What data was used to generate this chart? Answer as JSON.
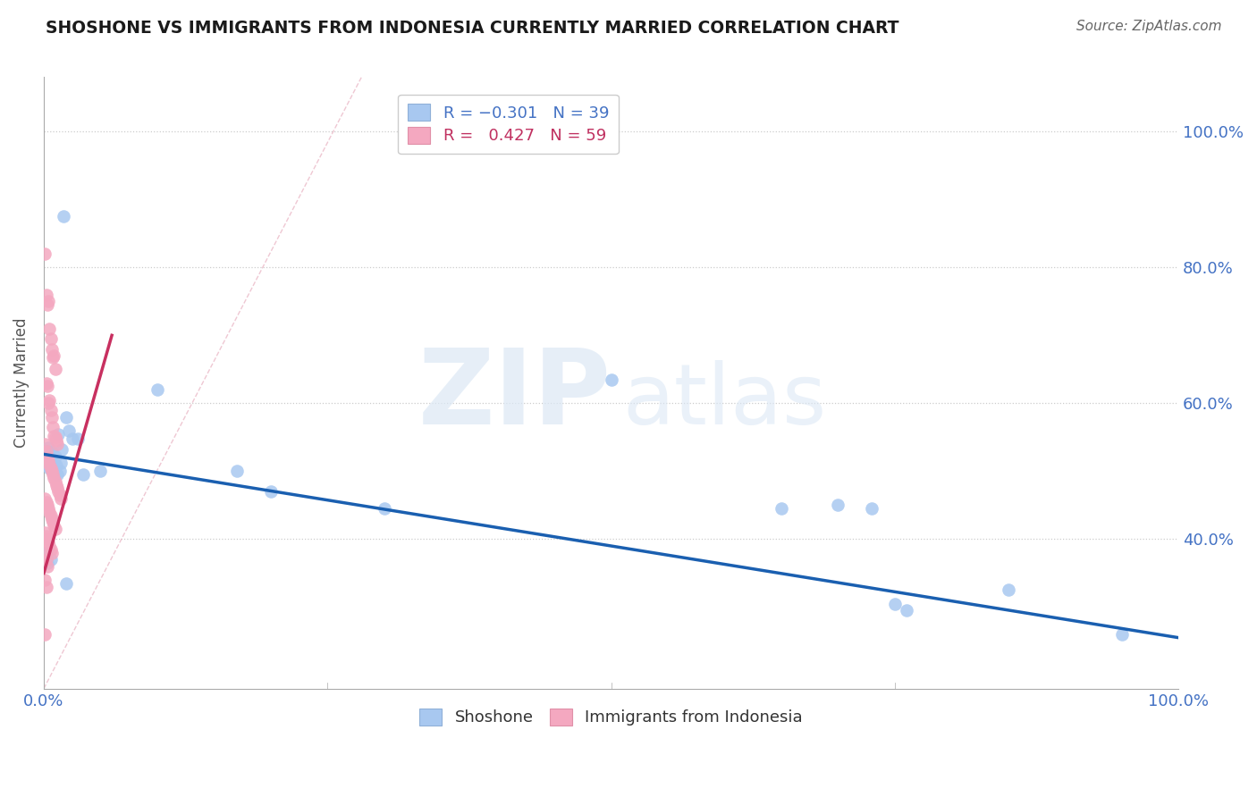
{
  "title": "SHOSHONE VS IMMIGRANTS FROM INDONESIA CURRENTLY MARRIED CORRELATION CHART",
  "source": "Source: ZipAtlas.com",
  "ylabel": "Currently Married",
  "R_blue": -0.301,
  "N_blue": 39,
  "R_pink": 0.427,
  "N_pink": 59,
  "blue_color": "#a8c8f0",
  "pink_color": "#f4a8c0",
  "trendline_blue_color": "#1a5fb0",
  "trendline_pink_color": "#c83060",
  "ref_line_color": "#e8b0c0",
  "legend_blue_label": "Shoshone",
  "legend_pink_label": "Immigrants from Indonesia",
  "blue_scatter": [
    [
      0.001,
      0.51
    ],
    [
      0.002,
      0.53
    ],
    [
      0.003,
      0.525
    ],
    [
      0.004,
      0.535
    ],
    [
      0.005,
      0.505
    ],
    [
      0.006,
      0.518
    ],
    [
      0.007,
      0.528
    ],
    [
      0.008,
      0.5
    ],
    [
      0.009,
      0.515
    ],
    [
      0.01,
      0.522
    ],
    [
      0.011,
      0.508
    ],
    [
      0.012,
      0.495
    ],
    [
      0.013,
      0.555
    ],
    [
      0.014,
      0.5
    ],
    [
      0.015,
      0.512
    ],
    [
      0.016,
      0.532
    ],
    [
      0.017,
      0.875
    ],
    [
      0.02,
      0.58
    ],
    [
      0.022,
      0.56
    ],
    [
      0.025,
      0.548
    ],
    [
      0.03,
      0.548
    ],
    [
      0.035,
      0.495
    ],
    [
      0.05,
      0.5
    ],
    [
      0.1,
      0.62
    ],
    [
      0.17,
      0.5
    ],
    [
      0.2,
      0.47
    ],
    [
      0.3,
      0.445
    ],
    [
      0.5,
      0.635
    ],
    [
      0.65,
      0.445
    ],
    [
      0.7,
      0.45
    ],
    [
      0.73,
      0.445
    ],
    [
      0.75,
      0.305
    ],
    [
      0.76,
      0.295
    ],
    [
      0.85,
      0.325
    ],
    [
      0.95,
      0.26
    ],
    [
      0.002,
      0.38
    ],
    [
      0.003,
      0.365
    ],
    [
      0.006,
      0.37
    ],
    [
      0.02,
      0.335
    ]
  ],
  "pink_scatter": [
    [
      0.001,
      0.82
    ],
    [
      0.002,
      0.76
    ],
    [
      0.003,
      0.745
    ],
    [
      0.004,
      0.75
    ],
    [
      0.005,
      0.71
    ],
    [
      0.006,
      0.695
    ],
    [
      0.007,
      0.68
    ],
    [
      0.008,
      0.668
    ],
    [
      0.009,
      0.67
    ],
    [
      0.01,
      0.65
    ],
    [
      0.002,
      0.63
    ],
    [
      0.003,
      0.625
    ],
    [
      0.004,
      0.6
    ],
    [
      0.005,
      0.605
    ],
    [
      0.006,
      0.59
    ],
    [
      0.007,
      0.58
    ],
    [
      0.008,
      0.565
    ],
    [
      0.009,
      0.552
    ],
    [
      0.01,
      0.55
    ],
    [
      0.011,
      0.545
    ],
    [
      0.012,
      0.54
    ],
    [
      0.001,
      0.54
    ],
    [
      0.002,
      0.53
    ],
    [
      0.003,
      0.52
    ],
    [
      0.004,
      0.515
    ],
    [
      0.005,
      0.51
    ],
    [
      0.006,
      0.505
    ],
    [
      0.007,
      0.5
    ],
    [
      0.008,
      0.495
    ],
    [
      0.009,
      0.49
    ],
    [
      0.01,
      0.485
    ],
    [
      0.011,
      0.48
    ],
    [
      0.012,
      0.475
    ],
    [
      0.013,
      0.47
    ],
    [
      0.014,
      0.465
    ],
    [
      0.015,
      0.46
    ],
    [
      0.001,
      0.46
    ],
    [
      0.002,
      0.455
    ],
    [
      0.003,
      0.45
    ],
    [
      0.004,
      0.445
    ],
    [
      0.005,
      0.44
    ],
    [
      0.006,
      0.435
    ],
    [
      0.007,
      0.43
    ],
    [
      0.008,
      0.425
    ],
    [
      0.009,
      0.42
    ],
    [
      0.01,
      0.415
    ],
    [
      0.001,
      0.41
    ],
    [
      0.002,
      0.405
    ],
    [
      0.003,
      0.4
    ],
    [
      0.004,
      0.395
    ],
    [
      0.005,
      0.39
    ],
    [
      0.006,
      0.385
    ],
    [
      0.007,
      0.38
    ],
    [
      0.001,
      0.375
    ],
    [
      0.002,
      0.37
    ],
    [
      0.003,
      0.36
    ],
    [
      0.001,
      0.34
    ],
    [
      0.002,
      0.33
    ],
    [
      0.001,
      0.26
    ]
  ],
  "xlim": [
    0.0,
    1.0
  ],
  "ylim": [
    0.18,
    1.08
  ],
  "yticks": [
    0.4,
    0.6,
    0.8,
    1.0
  ],
  "ytick_labels_right": [
    "40.0%",
    "60.0%",
    "80.0%",
    "100.0%"
  ],
  "xticks": [
    0.0,
    0.25,
    0.5,
    0.75,
    1.0
  ],
  "xtick_labels": [
    "0.0%",
    "",
    "",
    "",
    "100.0%"
  ],
  "blue_trend_x": [
    0.0,
    1.0
  ],
  "blue_trend_y": [
    0.525,
    0.255
  ],
  "pink_trend_x": [
    0.0,
    0.06
  ],
  "pink_trend_y": [
    0.35,
    0.7
  ]
}
